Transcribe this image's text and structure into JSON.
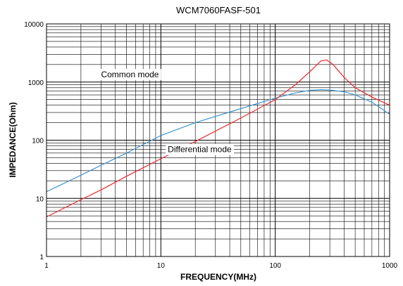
{
  "chart_data": {
    "type": "line",
    "title": "WCM7060FASF-501",
    "xlabel": "FREQUENCY(MHz)",
    "ylabel": "IMPEDANCE(Ohm)",
    "x_scale": "log",
    "y_scale": "log",
    "xlim": [
      1,
      1000
    ],
    "ylim": [
      1,
      10000
    ],
    "grid": true,
    "x_ticks": [
      {
        "value": 1,
        "label": "1"
      },
      {
        "value": 10,
        "label": "10"
      },
      {
        "value": 100,
        "label": "100"
      },
      {
        "value": 1000,
        "label": "1000"
      }
    ],
    "y_ticks": [
      {
        "value": 1,
        "label": "1"
      },
      {
        "value": 10,
        "label": "10"
      },
      {
        "value": 100,
        "label": "100"
      },
      {
        "value": 1000,
        "label": "1000"
      },
      {
        "value": 10000,
        "label": "10000"
      }
    ],
    "annotations": [
      {
        "text": "Common mode",
        "series": "common",
        "x": 3.0,
        "y": 1200
      },
      {
        "text": "Differential mode",
        "series": "differential",
        "x": 11.5,
        "y": 62
      }
    ],
    "series": [
      {
        "key": "common",
        "color": "#3f96cf",
        "x": [
          1,
          2,
          3,
          5,
          10,
          20,
          50,
          100,
          150,
          200,
          250,
          300,
          400,
          500,
          700,
          1000
        ],
        "values": [
          13,
          25,
          37,
          60,
          120,
          200,
          350,
          530,
          650,
          720,
          740,
          730,
          680,
          600,
          450,
          280
        ]
      },
      {
        "key": "differential",
        "color": "#f02828",
        "x": [
          1,
          2,
          3,
          5,
          10,
          20,
          50,
          100,
          150,
          200,
          250,
          280,
          320,
          400,
          500,
          700,
          1000
        ],
        "values": [
          4.8,
          9.5,
          14,
          24,
          48,
          95,
          240,
          500,
          900,
          1500,
          2300,
          2400,
          2000,
          1200,
          800,
          550,
          400
        ]
      }
    ]
  }
}
